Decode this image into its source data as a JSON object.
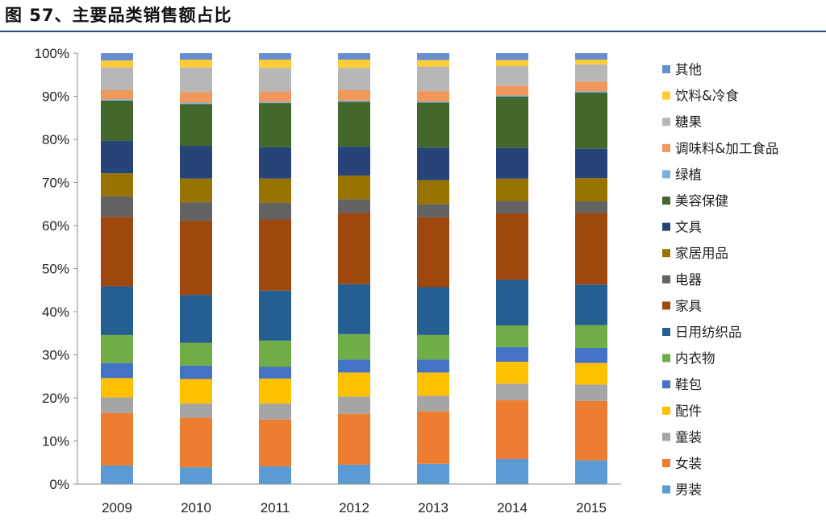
{
  "figure_title": "图 57、主要品类销售额占比",
  "chart_data": {
    "type": "bar",
    "stacked": true,
    "percent": true,
    "categories": [
      "2009",
      "2010",
      "2011",
      "2012",
      "2013",
      "2014",
      "2015"
    ],
    "ylim": [
      0,
      100
    ],
    "yticks": [
      "0%",
      "10%",
      "20%",
      "30%",
      "40%",
      "50%",
      "60%",
      "70%",
      "80%",
      "90%",
      "100%"
    ],
    "grid": false,
    "legend": "right",
    "title": "",
    "xlabel": "",
    "ylabel": "",
    "series": [
      {
        "name": "男装",
        "color": "#5b9bd5",
        "values": [
          4.3,
          3.9,
          4.1,
          4.5,
          4.7,
          5.8,
          5.5
        ]
      },
      {
        "name": "女装",
        "color": "#ed7d31",
        "values": [
          12.2,
          11.5,
          10.9,
          11.8,
          12.2,
          13.7,
          13.8
        ]
      },
      {
        "name": "童装",
        "color": "#a5a5a5",
        "values": [
          3.6,
          3.3,
          3.7,
          4.0,
          3.6,
          3.8,
          3.8
        ]
      },
      {
        "name": "配件",
        "color": "#ffc000",
        "values": [
          4.5,
          5.7,
          5.8,
          5.6,
          5.4,
          5.1,
          5.0
        ]
      },
      {
        "name": "鞋包",
        "color": "#4472c4",
        "values": [
          3.5,
          3.1,
          2.7,
          3.0,
          3.0,
          3.4,
          3.5
        ]
      },
      {
        "name": "内衣物",
        "color": "#70ad47",
        "values": [
          6.5,
          5.3,
          6.1,
          5.9,
          5.7,
          5.0,
          5.3
        ]
      },
      {
        "name": "日用纺织品",
        "color": "#255e91",
        "values": [
          11.3,
          11.1,
          11.6,
          11.6,
          11.1,
          10.6,
          9.4
        ]
      },
      {
        "name": "家具",
        "color": "#9e480e",
        "values": [
          16.1,
          17.2,
          16.5,
          16.5,
          16.2,
          15.4,
          16.6
        ]
      },
      {
        "name": "电器",
        "color": "#636363",
        "values": [
          4.8,
          4.3,
          3.9,
          3.2,
          3.1,
          2.9,
          2.7
        ]
      },
      {
        "name": "家居用品",
        "color": "#997300",
        "values": [
          5.3,
          5.5,
          5.6,
          5.5,
          5.5,
          5.2,
          5.4
        ]
      },
      {
        "name": "文具",
        "color": "#264478",
        "values": [
          7.6,
          7.6,
          7.3,
          6.7,
          7.6,
          7.1,
          6.8
        ]
      },
      {
        "name": "美容保健",
        "color": "#43682b",
        "values": [
          9.3,
          9.7,
          10.2,
          10.4,
          10.4,
          11.9,
          13.1
        ]
      },
      {
        "name": "绿植",
        "color": "#7cafdd",
        "values": [
          0.3,
          0.3,
          0.3,
          0.3,
          0.3,
          0.3,
          0.3
        ]
      },
      {
        "name": "调味料&加工食品",
        "color": "#f1975a",
        "values": [
          2.1,
          2.5,
          2.4,
          2.4,
          2.4,
          2.2,
          2.2
        ]
      },
      {
        "name": "糖果",
        "color": "#b7b7b7",
        "values": [
          5.3,
          5.7,
          5.5,
          5.2,
          5.7,
          4.6,
          4.0
        ]
      },
      {
        "name": "饮料&冷食",
        "color": "#ffcd33",
        "values": [
          1.6,
          1.8,
          1.9,
          1.9,
          1.5,
          1.4,
          1.1
        ]
      },
      {
        "name": "其他",
        "color": "#698ed0",
        "values": [
          1.7,
          1.5,
          1.5,
          1.5,
          1.6,
          1.6,
          1.5
        ]
      }
    ]
  }
}
